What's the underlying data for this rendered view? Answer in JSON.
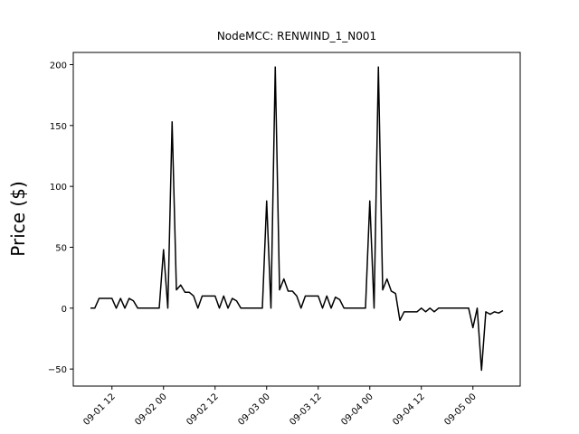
{
  "chart_data": {
    "type": "line",
    "title": "NodeMCC: RENWIND_1_N001",
    "y_label": "Price ($)",
    "x": [
      "09-01 07",
      "09-01 08",
      "09-01 09",
      "09-01 10",
      "09-01 11",
      "09-01 12",
      "09-01 13",
      "09-01 14",
      "09-01 15",
      "09-01 16",
      "09-01 17",
      "09-01 18",
      "09-01 19",
      "09-01 20",
      "09-01 21",
      "09-01 22",
      "09-01 23",
      "09-02 00",
      "09-02 01",
      "09-02 02",
      "09-02 03",
      "09-02 04",
      "09-02 05",
      "09-02 06",
      "09-02 07",
      "09-02 08",
      "09-02 09",
      "09-02 10",
      "09-02 11",
      "09-02 12",
      "09-02 13",
      "09-02 14",
      "09-02 15",
      "09-02 16",
      "09-02 17",
      "09-02 18",
      "09-02 19",
      "09-02 20",
      "09-02 21",
      "09-02 22",
      "09-02 23",
      "09-03 00",
      "09-03 01",
      "09-03 02",
      "09-03 03",
      "09-03 04",
      "09-03 05",
      "09-03 06",
      "09-03 07",
      "09-03 08",
      "09-03 09",
      "09-03 10",
      "09-03 11",
      "09-03 12",
      "09-03 13",
      "09-03 14",
      "09-03 15",
      "09-03 16",
      "09-03 17",
      "09-03 18",
      "09-03 19",
      "09-03 20",
      "09-03 21",
      "09-03 22",
      "09-03 23",
      "09-04 00",
      "09-04 01",
      "09-04 02",
      "09-04 03",
      "09-04 04",
      "09-04 05",
      "09-04 06",
      "09-04 07",
      "09-04 08",
      "09-04 09",
      "09-04 10",
      "09-04 11",
      "09-04 12",
      "09-04 13",
      "09-04 14",
      "09-04 15",
      "09-04 16",
      "09-04 17",
      "09-04 18",
      "09-04 19",
      "09-04 20",
      "09-04 21",
      "09-04 22",
      "09-04 23",
      "09-05 00",
      "09-05 01",
      "09-05 02",
      "09-05 03",
      "09-05 04",
      "09-05 05",
      "09-05 06",
      "09-05 07"
    ],
    "series": [
      {
        "color": "#000000",
        "values": [
          0,
          0,
          8,
          8,
          8,
          8,
          0,
          8,
          0,
          8,
          6,
          0,
          0,
          0,
          0,
          0,
          0,
          48,
          0,
          153,
          15,
          19,
          13,
          13,
          10,
          0,
          10,
          10,
          10,
          10,
          0,
          10,
          0,
          8,
          6,
          0,
          0,
          0,
          0,
          0,
          0,
          88,
          0,
          198,
          15,
          24,
          14,
          14,
          10,
          0,
          10,
          10,
          10,
          10,
          0,
          10,
          0,
          9,
          7,
          0,
          0,
          0,
          0,
          0,
          0,
          88,
          0,
          198,
          15,
          24,
          14,
          12,
          -10,
          -3,
          -3,
          -3,
          -3,
          0,
          -3,
          0,
          -3,
          0,
          0,
          0,
          0,
          0,
          0,
          0,
          0,
          -16,
          0,
          -51,
          -3,
          -5,
          -3,
          -4,
          -2
        ]
      }
    ],
    "xlim": [
      "09-01 03",
      "09-05 11"
    ],
    "xticks": [
      "09-01 12",
      "09-02 00",
      "09-02 12",
      "09-03 00",
      "09-03 12",
      "09-04 00",
      "09-04 12",
      "09-05 00"
    ],
    "ylim": [
      -64,
      210
    ],
    "yticks": [
      {
        "value": -50,
        "label": "−50"
      },
      0,
      50,
      100,
      150,
      200
    ],
    "grid": false
  }
}
